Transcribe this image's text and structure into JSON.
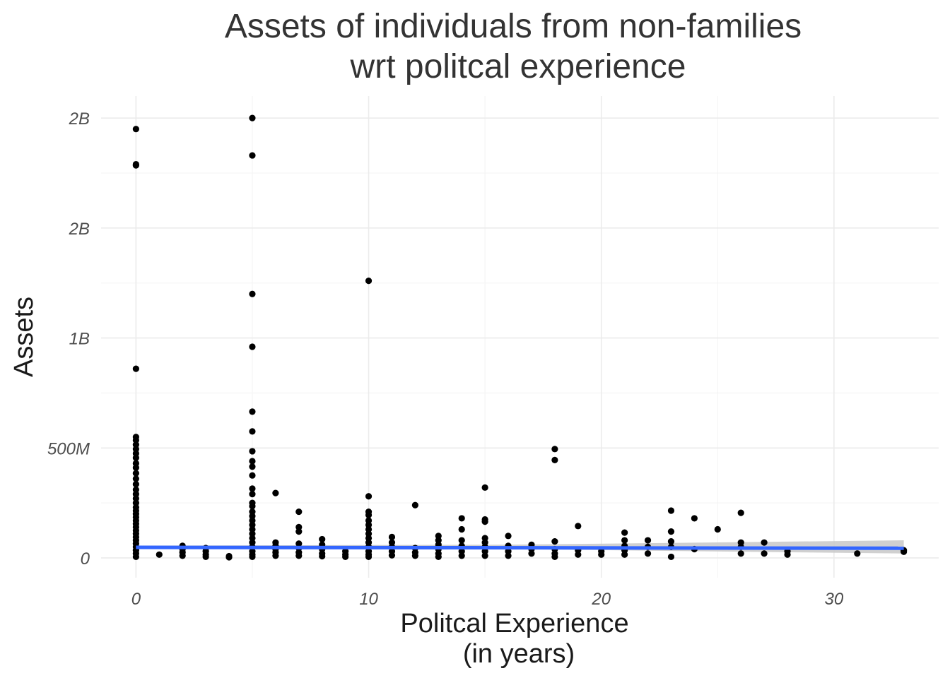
{
  "chart_data": {
    "type": "scatter",
    "title": [
      "Assets of individuals from non-families",
      "wrt politcal experience"
    ],
    "xlabel": [
      "Politcal Experience",
      "(in years)"
    ],
    "ylabel": "Assets",
    "xlim": [
      -1.5,
      34.5
    ],
    "ylim": [
      -90000000,
      2100000000
    ],
    "x_ticks": [
      {
        "value": 0,
        "label": "0"
      },
      {
        "value": 10,
        "label": "10"
      },
      {
        "value": 20,
        "label": "20"
      },
      {
        "value": 30,
        "label": "30"
      }
    ],
    "y_ticks": [
      {
        "value": 0,
        "label": "0"
      },
      {
        "value": 500000000,
        "label": "500M"
      },
      {
        "value": 1000000000,
        "label": "1B"
      },
      {
        "value": 1500000000,
        "label": "2B"
      },
      {
        "value": 2000000000,
        "label": "2B"
      }
    ],
    "grid": true,
    "legend": "none",
    "point_color": "#000000",
    "trend_color": "#3366ff",
    "band_color": "#c8c8c8",
    "points": [
      {
        "x": 0,
        "y": 1950000000
      },
      {
        "x": 0,
        "y": 1790000000
      },
      {
        "x": 0,
        "y": 1785000000
      },
      {
        "x": 0,
        "y": 860000000
      },
      {
        "x": 0,
        "y": 550000000
      },
      {
        "x": 0,
        "y": 535000000
      },
      {
        "x": 0,
        "y": 515000000
      },
      {
        "x": 0,
        "y": 495000000
      },
      {
        "x": 0,
        "y": 475000000
      },
      {
        "x": 0,
        "y": 455000000
      },
      {
        "x": 0,
        "y": 430000000
      },
      {
        "x": 0,
        "y": 410000000
      },
      {
        "x": 0,
        "y": 385000000
      },
      {
        "x": 0,
        "y": 360000000
      },
      {
        "x": 0,
        "y": 335000000
      },
      {
        "x": 0,
        "y": 310000000
      },
      {
        "x": 0,
        "y": 290000000
      },
      {
        "x": 0,
        "y": 270000000
      },
      {
        "x": 0,
        "y": 250000000
      },
      {
        "x": 0,
        "y": 230000000
      },
      {
        "x": 0,
        "y": 215000000
      },
      {
        "x": 0,
        "y": 200000000
      },
      {
        "x": 0,
        "y": 185000000
      },
      {
        "x": 0,
        "y": 170000000
      },
      {
        "x": 0,
        "y": 155000000
      },
      {
        "x": 0,
        "y": 140000000
      },
      {
        "x": 0,
        "y": 125000000
      },
      {
        "x": 0,
        "y": 110000000
      },
      {
        "x": 0,
        "y": 95000000
      },
      {
        "x": 0,
        "y": 80000000
      },
      {
        "x": 0,
        "y": 65000000
      },
      {
        "x": 0,
        "y": 50000000
      },
      {
        "x": 0,
        "y": 35000000
      },
      {
        "x": 0,
        "y": 20000000
      },
      {
        "x": 0,
        "y": 5000000
      },
      {
        "x": 1,
        "y": 15000000
      },
      {
        "x": 2,
        "y": 55000000
      },
      {
        "x": 2,
        "y": 40000000
      },
      {
        "x": 2,
        "y": 25000000
      },
      {
        "x": 2,
        "y": 10000000
      },
      {
        "x": 3,
        "y": 45000000
      },
      {
        "x": 3,
        "y": 30000000
      },
      {
        "x": 3,
        "y": 15000000
      },
      {
        "x": 3,
        "y": 5000000
      },
      {
        "x": 4,
        "y": 8000000
      },
      {
        "x": 4,
        "y": 3000000
      },
      {
        "x": 5,
        "y": 2000000000
      },
      {
        "x": 5,
        "y": 1830000000
      },
      {
        "x": 5,
        "y": 1200000000
      },
      {
        "x": 5,
        "y": 960000000
      },
      {
        "x": 5,
        "y": 665000000
      },
      {
        "x": 5,
        "y": 575000000
      },
      {
        "x": 5,
        "y": 485000000
      },
      {
        "x": 5,
        "y": 440000000
      },
      {
        "x": 5,
        "y": 415000000
      },
      {
        "x": 5,
        "y": 375000000
      },
      {
        "x": 5,
        "y": 315000000
      },
      {
        "x": 5,
        "y": 290000000
      },
      {
        "x": 5,
        "y": 250000000
      },
      {
        "x": 5,
        "y": 235000000
      },
      {
        "x": 5,
        "y": 210000000
      },
      {
        "x": 5,
        "y": 190000000
      },
      {
        "x": 5,
        "y": 170000000
      },
      {
        "x": 5,
        "y": 150000000
      },
      {
        "x": 5,
        "y": 130000000
      },
      {
        "x": 5,
        "y": 110000000
      },
      {
        "x": 5,
        "y": 90000000
      },
      {
        "x": 5,
        "y": 70000000
      },
      {
        "x": 5,
        "y": 50000000
      },
      {
        "x": 5,
        "y": 30000000
      },
      {
        "x": 5,
        "y": 15000000
      },
      {
        "x": 5,
        "y": 5000000
      },
      {
        "x": 6,
        "y": 295000000
      },
      {
        "x": 6,
        "y": 70000000
      },
      {
        "x": 6,
        "y": 55000000
      },
      {
        "x": 6,
        "y": 40000000
      },
      {
        "x": 6,
        "y": 25000000
      },
      {
        "x": 6,
        "y": 10000000
      },
      {
        "x": 7,
        "y": 210000000
      },
      {
        "x": 7,
        "y": 140000000
      },
      {
        "x": 7,
        "y": 120000000
      },
      {
        "x": 7,
        "y": 65000000
      },
      {
        "x": 7,
        "y": 45000000
      },
      {
        "x": 7,
        "y": 25000000
      },
      {
        "x": 7,
        "y": 10000000
      },
      {
        "x": 8,
        "y": 85000000
      },
      {
        "x": 8,
        "y": 60000000
      },
      {
        "x": 8,
        "y": 40000000
      },
      {
        "x": 8,
        "y": 20000000
      },
      {
        "x": 8,
        "y": 8000000
      },
      {
        "x": 9,
        "y": 30000000
      },
      {
        "x": 9,
        "y": 15000000
      },
      {
        "x": 9,
        "y": 5000000
      },
      {
        "x": 10,
        "y": 1260000000
      },
      {
        "x": 10,
        "y": 280000000
      },
      {
        "x": 10,
        "y": 210000000
      },
      {
        "x": 10,
        "y": 195000000
      },
      {
        "x": 10,
        "y": 170000000
      },
      {
        "x": 10,
        "y": 150000000
      },
      {
        "x": 10,
        "y": 130000000
      },
      {
        "x": 10,
        "y": 110000000
      },
      {
        "x": 10,
        "y": 90000000
      },
      {
        "x": 10,
        "y": 70000000
      },
      {
        "x": 10,
        "y": 50000000
      },
      {
        "x": 10,
        "y": 30000000
      },
      {
        "x": 10,
        "y": 15000000
      },
      {
        "x": 10,
        "y": 5000000
      },
      {
        "x": 11,
        "y": 95000000
      },
      {
        "x": 11,
        "y": 70000000
      },
      {
        "x": 11,
        "y": 50000000
      },
      {
        "x": 11,
        "y": 30000000
      },
      {
        "x": 11,
        "y": 12000000
      },
      {
        "x": 12,
        "y": 240000000
      },
      {
        "x": 12,
        "y": 45000000
      },
      {
        "x": 12,
        "y": 25000000
      },
      {
        "x": 12,
        "y": 10000000
      },
      {
        "x": 13,
        "y": 100000000
      },
      {
        "x": 13,
        "y": 80000000
      },
      {
        "x": 13,
        "y": 60000000
      },
      {
        "x": 13,
        "y": 40000000
      },
      {
        "x": 13,
        "y": 20000000
      },
      {
        "x": 13,
        "y": 5000000
      },
      {
        "x": 14,
        "y": 180000000
      },
      {
        "x": 14,
        "y": 130000000
      },
      {
        "x": 14,
        "y": 80000000
      },
      {
        "x": 14,
        "y": 55000000
      },
      {
        "x": 14,
        "y": 30000000
      },
      {
        "x": 14,
        "y": 10000000
      },
      {
        "x": 15,
        "y": 320000000
      },
      {
        "x": 15,
        "y": 175000000
      },
      {
        "x": 15,
        "y": 165000000
      },
      {
        "x": 15,
        "y": 90000000
      },
      {
        "x": 15,
        "y": 70000000
      },
      {
        "x": 15,
        "y": 50000000
      },
      {
        "x": 15,
        "y": 30000000
      },
      {
        "x": 15,
        "y": 10000000
      },
      {
        "x": 16,
        "y": 100000000
      },
      {
        "x": 16,
        "y": 55000000
      },
      {
        "x": 16,
        "y": 30000000
      },
      {
        "x": 16,
        "y": 10000000
      },
      {
        "x": 17,
        "y": 60000000
      },
      {
        "x": 17,
        "y": 40000000
      },
      {
        "x": 17,
        "y": 20000000
      },
      {
        "x": 18,
        "y": 495000000
      },
      {
        "x": 18,
        "y": 445000000
      },
      {
        "x": 18,
        "y": 75000000
      },
      {
        "x": 18,
        "y": 40000000
      },
      {
        "x": 18,
        "y": 20000000
      },
      {
        "x": 18,
        "y": 5000000
      },
      {
        "x": 19,
        "y": 145000000
      },
      {
        "x": 19,
        "y": 35000000
      },
      {
        "x": 19,
        "y": 15000000
      },
      {
        "x": 20,
        "y": 30000000
      },
      {
        "x": 20,
        "y": 15000000
      },
      {
        "x": 21,
        "y": 115000000
      },
      {
        "x": 21,
        "y": 80000000
      },
      {
        "x": 21,
        "y": 55000000
      },
      {
        "x": 21,
        "y": 35000000
      },
      {
        "x": 21,
        "y": 15000000
      },
      {
        "x": 22,
        "y": 80000000
      },
      {
        "x": 22,
        "y": 50000000
      },
      {
        "x": 22,
        "y": 20000000
      },
      {
        "x": 23,
        "y": 215000000
      },
      {
        "x": 23,
        "y": 120000000
      },
      {
        "x": 23,
        "y": 75000000
      },
      {
        "x": 23,
        "y": 50000000
      },
      {
        "x": 23,
        "y": 5000000
      },
      {
        "x": 24,
        "y": 180000000
      },
      {
        "x": 24,
        "y": 40000000
      },
      {
        "x": 25,
        "y": 130000000
      },
      {
        "x": 26,
        "y": 205000000
      },
      {
        "x": 26,
        "y": 70000000
      },
      {
        "x": 26,
        "y": 50000000
      },
      {
        "x": 26,
        "y": 20000000
      },
      {
        "x": 27,
        "y": 70000000
      },
      {
        "x": 27,
        "y": 20000000
      },
      {
        "x": 28,
        "y": 30000000
      },
      {
        "x": 28,
        "y": 15000000
      },
      {
        "x": 31,
        "y": 20000000
      },
      {
        "x": 33,
        "y": 35000000
      },
      {
        "x": 33,
        "y": 28000000
      }
    ],
    "trend": {
      "x_start": 0,
      "y_start": 48000000,
      "x_end": 33,
      "y_end": 44000000
    },
    "confidence_band": [
      {
        "x": 0,
        "lo": 40000000,
        "hi": 56000000
      },
      {
        "x": 16,
        "lo": 40000000,
        "hi": 60000000
      },
      {
        "x": 33,
        "lo": 20000000,
        "hi": 80000000
      }
    ]
  }
}
